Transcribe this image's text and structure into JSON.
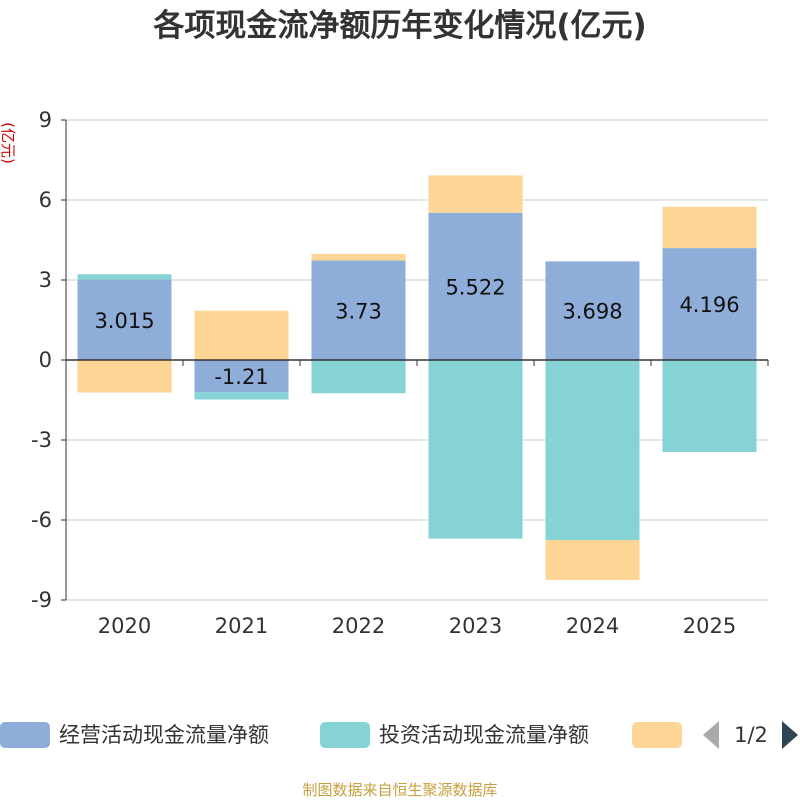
{
  "title": "各项现金流净额历年变化情况(亿元)",
  "source": "制图数据来自恒生聚源数据库",
  "legend": {
    "items": [
      {
        "label": "经营活动现金流量净额",
        "color": "#8eadd9"
      },
      {
        "label": "投资活动现金流量净额",
        "color": "#86d3d6"
      },
      {
        "label": "",
        "color": "#fdd696"
      }
    ],
    "pager_text": "1/2"
  },
  "chart_data": {
    "type": "bar",
    "stacked": true,
    "title": "各项现金流净额历年变化情况(亿元)",
    "ylabel": "(亿元)",
    "xlabel": "",
    "categories": [
      "2020",
      "2021",
      "2022",
      "2023",
      "2024",
      "2025"
    ],
    "yticks": [
      9,
      6,
      3,
      0,
      -3,
      -6,
      -9
    ],
    "ylim": [
      -9,
      9
    ],
    "series": [
      {
        "name": "经营活动现金流量净额",
        "color": "#8eadd9",
        "values": [
          3.015,
          -1.21,
          3.73,
          5.522,
          3.698,
          4.196
        ],
        "labels": [
          "3.015",
          "-1.21",
          "3.73",
          "5.522",
          "3.698",
          "4.196"
        ]
      },
      {
        "name": "投资活动现金流量净额",
        "color": "#86d3d6",
        "values": [
          0.2,
          -0.27,
          -1.25,
          -6.7,
          -6.75,
          -3.45
        ]
      },
      {
        "name": "",
        "color": "#fdd696",
        "values": [
          -1.22,
          1.85,
          0.25,
          1.4,
          -1.5,
          1.55
        ]
      }
    ]
  }
}
